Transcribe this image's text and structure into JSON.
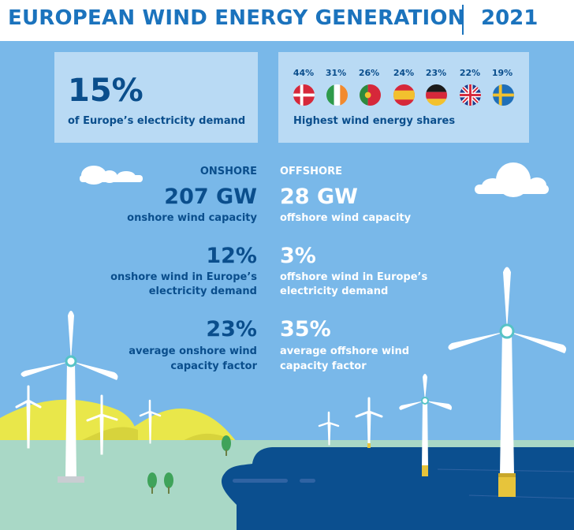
{
  "header": {
    "title": "EUROPEAN WIND ENERGY GENERATION",
    "year": "2021"
  },
  "demand_box": {
    "value": "15%",
    "caption": "of Europe’s electricity demand"
  },
  "shares_box": {
    "caption": "Highest wind energy shares",
    "countries": [
      {
        "flag": "denmark-flag-icon",
        "share": "44%"
      },
      {
        "flag": "ireland-flag-icon",
        "share": "31%"
      },
      {
        "flag": "portugal-flag-icon",
        "share": "26%"
      },
      {
        "flag": "spain-flag-icon",
        "share": "24%"
      },
      {
        "flag": "germany-flag-icon",
        "share": "23%"
      },
      {
        "flag": "uk-flag-icon",
        "share": "22%"
      },
      {
        "flag": "sweden-flag-icon",
        "share": "19%"
      }
    ]
  },
  "onshore": {
    "heading": "ONSHORE",
    "capacity": "207 GW",
    "capacity_desc": "onshore wind capacity",
    "demand": "12%",
    "demand_desc_1": "onshore wind in Europe’s",
    "demand_desc_2": "electricity demand",
    "factor": "23%",
    "factor_desc_1": "average onshore wind",
    "factor_desc_2": "capacity factor"
  },
  "offshore": {
    "heading": "OFFSHORE",
    "capacity": "28 GW",
    "capacity_desc": "offshore wind capacity",
    "demand": "3%",
    "demand_desc_1": "offshore wind in Europe’s",
    "demand_desc_2": "electricity demand",
    "factor": "35%",
    "factor_desc_1": "average offshore wind",
    "factor_desc_2": "capacity factor"
  },
  "colors": {
    "sky": "#79b8e9",
    "header_blue": "#1b73bd",
    "navy_text": "#0a4e8c",
    "box": "#b9daf4",
    "sea": "#0b4f8f",
    "hills": "#e9e74a",
    "ground": "#a9d8c6"
  }
}
